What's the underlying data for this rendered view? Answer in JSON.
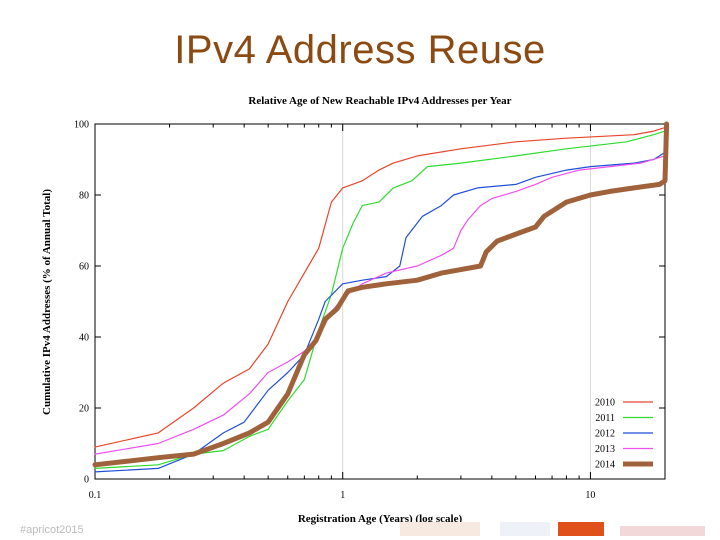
{
  "slide": {
    "title": "IPv4 Address Reuse",
    "footer_text": "#apricot2015"
  },
  "colors": {
    "title": "#8a4a12",
    "series_2010": "#e8452a",
    "series_2011": "#2edb2e",
    "series_2012": "#1f4fd6",
    "series_2013": "#ef4fef",
    "series_2014": "#a0623a"
  },
  "chart_data": {
    "type": "line",
    "title": "Relative Age of New Reachable IPv4 Addresses per Year",
    "xlabel": "Registration Age (Years) (log scale)",
    "ylabel": "Cumulative IPv4 Addresses (% of Annual Total)",
    "xscale": "log",
    "xlim": [
      0.1,
      20
    ],
    "ylim": [
      0,
      100
    ],
    "xticks": [
      {
        "value": 0.1,
        "label": "0.1"
      },
      {
        "value": 1,
        "label": "1"
      },
      {
        "value": 10,
        "label": "10"
      }
    ],
    "yticks": [
      0,
      20,
      40,
      60,
      80,
      100
    ],
    "grid": true,
    "legend": "bottom-right",
    "series": [
      {
        "name": "2010",
        "color": "#e8452a",
        "width": 1.2,
        "points": [
          [
            0.1,
            9
          ],
          [
            0.18,
            13
          ],
          [
            0.25,
            20
          ],
          [
            0.33,
            27
          ],
          [
            0.42,
            31
          ],
          [
            0.5,
            38
          ],
          [
            0.6,
            50
          ],
          [
            0.7,
            58
          ],
          [
            0.8,
            65
          ],
          [
            0.9,
            78
          ],
          [
            1,
            82
          ],
          [
            1.2,
            84
          ],
          [
            1.4,
            87
          ],
          [
            1.6,
            89
          ],
          [
            2,
            91
          ],
          [
            3,
            93
          ],
          [
            5,
            95
          ],
          [
            8,
            96
          ],
          [
            15,
            97
          ],
          [
            18,
            98
          ],
          [
            20,
            99
          ]
        ]
      },
      {
        "name": "2011",
        "color": "#2edb2e",
        "width": 1.2,
        "points": [
          [
            0.1,
            3
          ],
          [
            0.18,
            4
          ],
          [
            0.25,
            7
          ],
          [
            0.33,
            8
          ],
          [
            0.42,
            12
          ],
          [
            0.5,
            14
          ],
          [
            0.6,
            22
          ],
          [
            0.7,
            28
          ],
          [
            0.8,
            42
          ],
          [
            0.9,
            52
          ],
          [
            1,
            65
          ],
          [
            1.1,
            72
          ],
          [
            1.2,
            77
          ],
          [
            1.4,
            78
          ],
          [
            1.6,
            82
          ],
          [
            1.9,
            84
          ],
          [
            2.2,
            88
          ],
          [
            3,
            89
          ],
          [
            5,
            91
          ],
          [
            8,
            93
          ],
          [
            14,
            95
          ],
          [
            18,
            97
          ],
          [
            20,
            98
          ]
        ]
      },
      {
        "name": "2012",
        "color": "#1f4fd6",
        "width": 1.2,
        "points": [
          [
            0.1,
            2
          ],
          [
            0.18,
            3
          ],
          [
            0.25,
            7
          ],
          [
            0.33,
            13
          ],
          [
            0.4,
            16
          ],
          [
            0.5,
            25
          ],
          [
            0.6,
            30
          ],
          [
            0.7,
            35
          ],
          [
            0.8,
            45
          ],
          [
            0.85,
            50
          ],
          [
            1,
            55
          ],
          [
            1.2,
            56
          ],
          [
            1.5,
            57
          ],
          [
            1.7,
            60
          ],
          [
            1.8,
            68
          ],
          [
            2.1,
            74
          ],
          [
            2.5,
            77
          ],
          [
            2.8,
            80
          ],
          [
            3.5,
            82
          ],
          [
            5,
            83
          ],
          [
            6,
            85
          ],
          [
            8,
            87
          ],
          [
            10,
            88
          ],
          [
            15,
            89
          ],
          [
            18,
            90
          ],
          [
            20,
            92
          ],
          [
            20.3,
            97
          ]
        ]
      },
      {
        "name": "2013",
        "color": "#ef4fef",
        "width": 1.2,
        "points": [
          [
            0.1,
            7
          ],
          [
            0.18,
            10
          ],
          [
            0.25,
            14
          ],
          [
            0.33,
            18
          ],
          [
            0.42,
            24
          ],
          [
            0.5,
            30
          ],
          [
            0.6,
            33
          ],
          [
            0.7,
            36
          ],
          [
            0.8,
            40
          ],
          [
            0.9,
            47
          ],
          [
            1,
            51
          ],
          [
            1.2,
            55
          ],
          [
            1.5,
            58
          ],
          [
            2,
            60
          ],
          [
            2.5,
            63
          ],
          [
            2.8,
            65
          ],
          [
            3,
            70
          ],
          [
            3.2,
            73
          ],
          [
            3.6,
            77
          ],
          [
            4,
            79
          ],
          [
            5,
            81
          ],
          [
            6,
            83
          ],
          [
            7,
            85
          ],
          [
            9,
            87
          ],
          [
            12,
            88
          ],
          [
            16,
            89
          ],
          [
            20,
            91
          ],
          [
            20.3,
            95
          ]
        ]
      },
      {
        "name": "2014",
        "color": "#a0623a",
        "width": 5,
        "points": [
          [
            0.1,
            4
          ],
          [
            0.18,
            6
          ],
          [
            0.25,
            7
          ],
          [
            0.33,
            10
          ],
          [
            0.42,
            13
          ],
          [
            0.5,
            16
          ],
          [
            0.6,
            24
          ],
          [
            0.7,
            35
          ],
          [
            0.78,
            39
          ],
          [
            0.85,
            45
          ],
          [
            0.95,
            48
          ],
          [
            1.05,
            53
          ],
          [
            1.2,
            54
          ],
          [
            1.5,
            55
          ],
          [
            2,
            56
          ],
          [
            2.5,
            58
          ],
          [
            3,
            59
          ],
          [
            3.6,
            60
          ],
          [
            3.8,
            64
          ],
          [
            4.2,
            67
          ],
          [
            5,
            69
          ],
          [
            6,
            71
          ],
          [
            6.5,
            74
          ],
          [
            8,
            78
          ],
          [
            10,
            80
          ],
          [
            12,
            81
          ],
          [
            15,
            82
          ],
          [
            19,
            83
          ],
          [
            20,
            84
          ],
          [
            20.3,
            100
          ]
        ]
      }
    ]
  }
}
